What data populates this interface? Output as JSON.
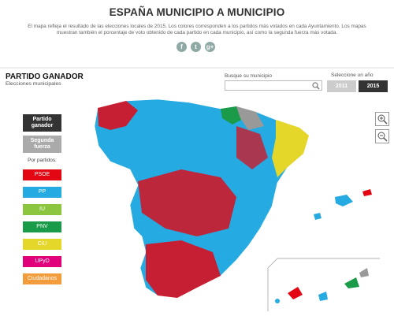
{
  "header": {
    "title": "ESPAÑA MUNICIPIO A MUNICIPIO",
    "description": "El mapa refleja el resultado de las elecciones locales de 2015. Los colores corresponden a los partidos más votados en cada Ayuntamiento. Los mapas muestran también el porcentaje de voto obtenido de cada partido en cada municipio, así como la segunda fuerza más votada.",
    "share": [
      "f",
      "t",
      "g+"
    ]
  },
  "panel": {
    "title": "PARTIDO GANADOR",
    "subtitle": "Elecciones municipales"
  },
  "search": {
    "label": "Busque su municipio"
  },
  "years": {
    "label": "Seleccione un año",
    "options": [
      "2011",
      "2015"
    ]
  },
  "views": [
    "Partido ganador",
    "Segunda fuerza"
  ],
  "legend": {
    "label": "Por partidos:",
    "parties": [
      {
        "name": "PSOE",
        "color": "#e30613"
      },
      {
        "name": "PP",
        "color": "#25aae1"
      },
      {
        "name": "IU",
        "color": "#8cc63f"
      },
      {
        "name": "PNV",
        "color": "#1a9b49"
      },
      {
        "name": "CiU",
        "color": "#e5d62a"
      },
      {
        "name": "UPyD",
        "color": "#e2007a"
      },
      {
        "name": "Ciudadanos",
        "color": "#f39c3c"
      }
    ]
  }
}
